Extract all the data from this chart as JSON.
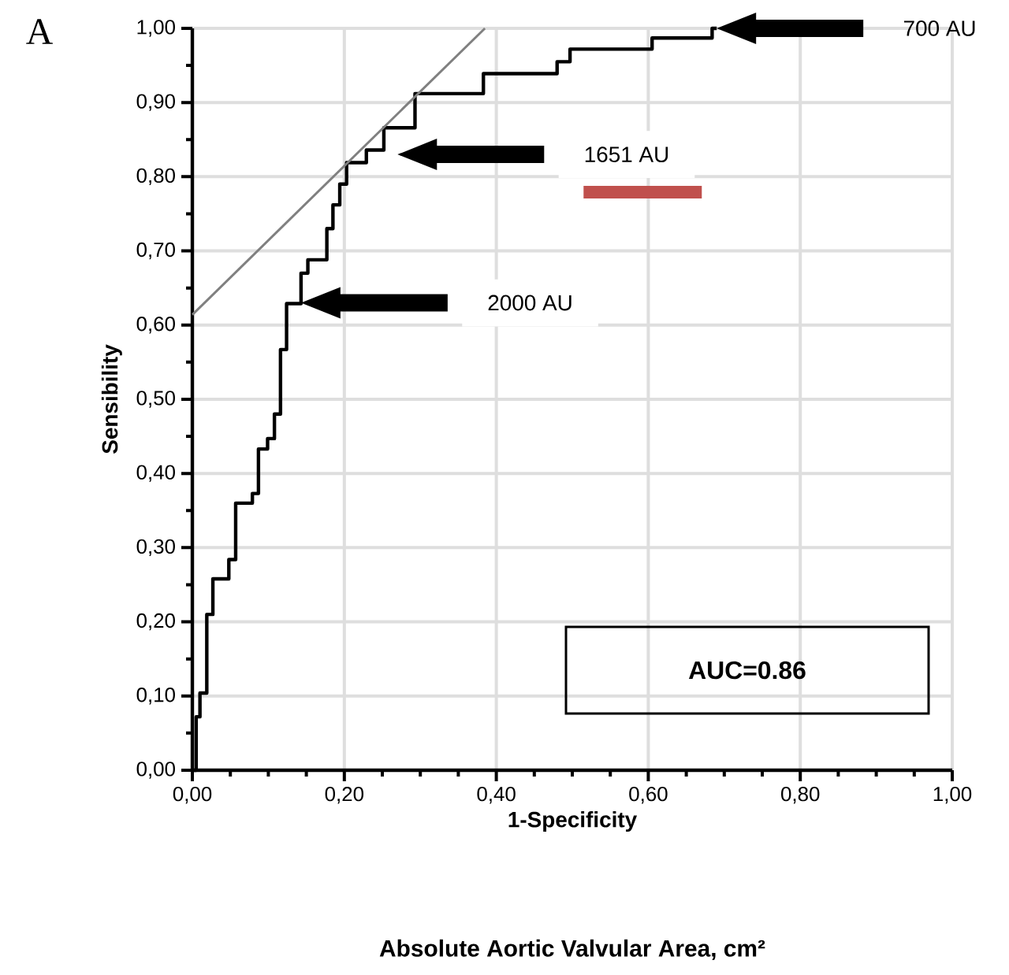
{
  "chart_data": {
    "type": "line",
    "title": "Absolute Aortic Valvular Area, cm²",
    "xlabel": "1-Specificity",
    "ylabel": "Sensibility",
    "xlim": [
      0,
      1
    ],
    "ylim": [
      0,
      1
    ],
    "xticks": [
      {
        "value": 0,
        "label": "0,00"
      },
      {
        "value": 0.05,
        "label": null
      },
      {
        "value": 0.1,
        "label": null
      },
      {
        "value": 0.15,
        "label": null
      },
      {
        "value": 0.2,
        "label": "0,20"
      },
      {
        "value": 0.25,
        "label": null
      },
      {
        "value": 0.3,
        "label": null
      },
      {
        "value": 0.35,
        "label": null
      },
      {
        "value": 0.4,
        "label": "0,40"
      },
      {
        "value": 0.45,
        "label": null
      },
      {
        "value": 0.5,
        "label": null
      },
      {
        "value": 0.55,
        "label": null
      },
      {
        "value": 0.6,
        "label": "0,60"
      },
      {
        "value": 0.65,
        "label": null
      },
      {
        "value": 0.7,
        "label": null
      },
      {
        "value": 0.75,
        "label": null
      },
      {
        "value": 0.8,
        "label": "0,80"
      },
      {
        "value": 0.85,
        "label": null
      },
      {
        "value": 0.9,
        "label": null
      },
      {
        "value": 0.95,
        "label": null
      },
      {
        "value": 1,
        "label": "1,00"
      }
    ],
    "yticks": [
      {
        "value": 0,
        "label": "0,00"
      },
      {
        "value": 0.05,
        "label": null
      },
      {
        "value": 0.1,
        "label": "0,10"
      },
      {
        "value": 0.15,
        "label": null
      },
      {
        "value": 0.2,
        "label": "0,20"
      },
      {
        "value": 0.25,
        "label": null
      },
      {
        "value": 0.3,
        "label": "0,30"
      },
      {
        "value": 0.35,
        "label": null
      },
      {
        "value": 0.4,
        "label": "0,40"
      },
      {
        "value": 0.45,
        "label": null
      },
      {
        "value": 0.5,
        "label": "0,50"
      },
      {
        "value": 0.55,
        "label": null
      },
      {
        "value": 0.6,
        "label": "0,60"
      },
      {
        "value": 0.65,
        "label": null
      },
      {
        "value": 0.7,
        "label": "0,70"
      },
      {
        "value": 0.75,
        "label": null
      },
      {
        "value": 0.8,
        "label": "0,80"
      },
      {
        "value": 0.85,
        "label": null
      },
      {
        "value": 0.9,
        "label": "0,90"
      },
      {
        "value": 0.95,
        "label": null
      },
      {
        "value": 1,
        "label": "1,00"
      }
    ],
    "grid": true,
    "marker": "none",
    "line_style": "solid",
    "series": [
      {
        "color": "#000000",
        "x": [
          0,
          0.005,
          0.005,
          0.01,
          0.01,
          0.019,
          0.019,
          0.027,
          0.027,
          0.048,
          0.048,
          0.057,
          0.057,
          0.079,
          0.079,
          0.087,
          0.087,
          0.099,
          0.099,
          0.108,
          0.108,
          0.116,
          0.116,
          0.124,
          0.124,
          0.143,
          0.143,
          0.152,
          0.152,
          0.177,
          0.177,
          0.185,
          0.185,
          0.194,
          0.194,
          0.203,
          0.203,
          0.229,
          0.229,
          0.252,
          0.252,
          0.293,
          0.293,
          0.383,
          0.383,
          0.48,
          0.48,
          0.497,
          0.497,
          0.605,
          0.605,
          0.684,
          0.684,
          0.69
        ],
        "values": [
          0,
          0,
          0.072,
          0.072,
          0.104,
          0.104,
          0.21,
          0.21,
          0.258,
          0.258,
          0.284,
          0.284,
          0.36,
          0.36,
          0.373,
          0.373,
          0.433,
          0.433,
          0.447,
          0.447,
          0.48,
          0.48,
          0.567,
          0.567,
          0.629,
          0.629,
          0.67,
          0.67,
          0.688,
          0.688,
          0.73,
          0.73,
          0.762,
          0.762,
          0.79,
          0.79,
          0.819,
          0.819,
          0.836,
          0.836,
          0.866,
          0.866,
          0.912,
          0.912,
          0.939,
          0.939,
          0.955,
          0.955,
          0.972,
          0.972,
          0.987,
          0.987,
          1.0,
          1.0
        ]
      },
      {
        "color": "#808080",
        "x": [
          0,
          0.385
        ],
        "values": [
          0.614,
          1.0
        ]
      }
    ],
    "annotations": [
      "A",
      "700 AU",
      "1651 AU",
      "2000 AU",
      "AUC=0.86"
    ]
  }
}
